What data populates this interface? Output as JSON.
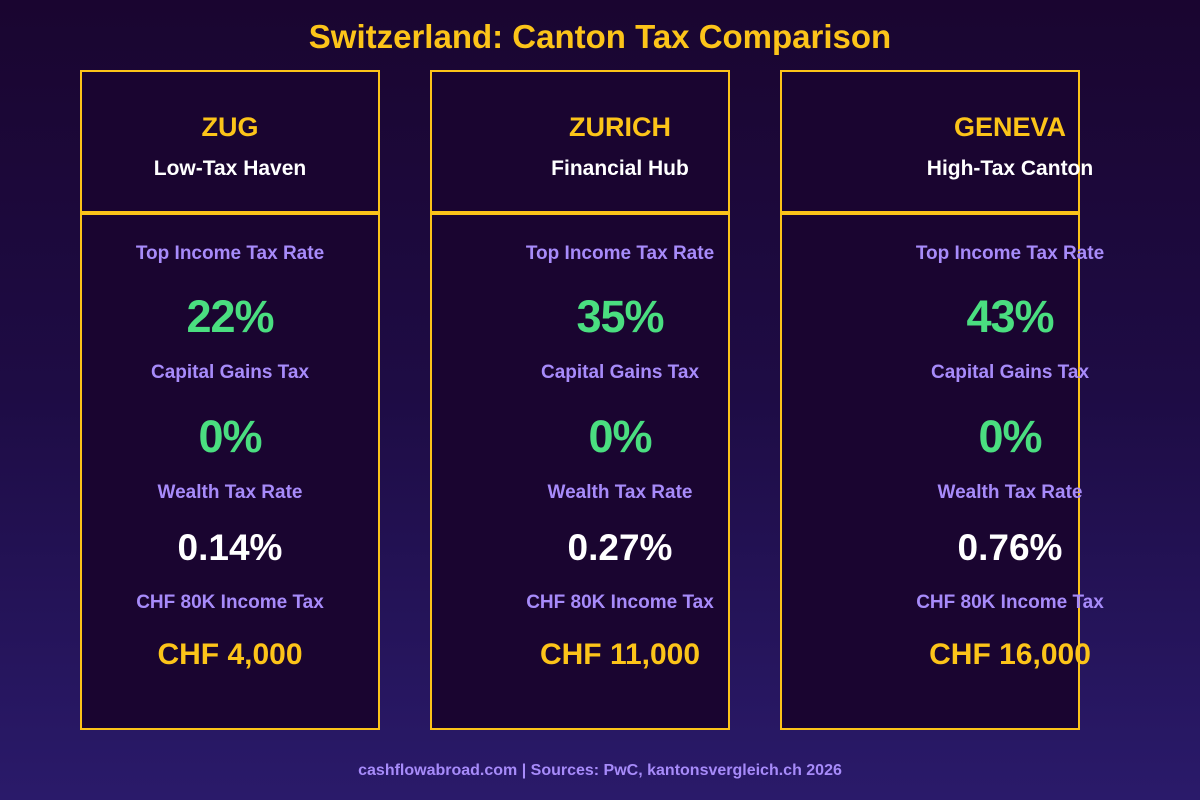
{
  "title": "Switzerland: Canton Tax Comparison",
  "labels": {
    "income": "Top Income Tax Rate",
    "capital": "Capital Gains Tax",
    "wealth": "Wealth Tax Rate",
    "chf80k": "CHF 80K Income Tax"
  },
  "cantons": [
    {
      "name": "ZUG",
      "subtitle": "Low-Tax Haven",
      "income": "22%",
      "capital": "0%",
      "wealth": "0.14%",
      "chf80k": "CHF 4,000"
    },
    {
      "name": "ZURICH",
      "subtitle": "Financial Hub",
      "income": "35%",
      "capital": "0%",
      "wealth": "0.27%",
      "chf80k": "CHF 11,000"
    },
    {
      "name": "GENEVA",
      "subtitle": "High-Tax Canton",
      "income": "43%",
      "capital": "0%",
      "wealth": "0.76%",
      "chf80k": "CHF 16,000"
    }
  ],
  "footer": "cashflowabroad.com | Sources: PwC, kantonsvergleich.ch 2026",
  "colors": {
    "accent": "#fcc419",
    "label": "#a78bfa",
    "value": "#4ade80",
    "card": "#1a0530"
  }
}
